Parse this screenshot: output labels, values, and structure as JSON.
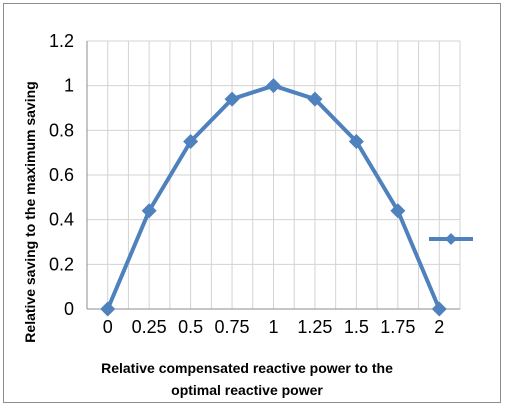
{
  "chart_data": {
    "type": "line",
    "x": [
      0,
      0.25,
      0.5,
      0.75,
      1,
      1.25,
      1.5,
      1.75,
      2
    ],
    "series": [
      {
        "values": [
          0,
          0.44,
          0.75,
          0.94,
          1.0,
          0.94,
          0.75,
          0.44,
          0
        ]
      }
    ],
    "x_tick_labels": [
      "0",
      "0.25",
      "0.5",
      "0.75",
      "1",
      "1.25",
      "1.5",
      "1.75",
      "2"
    ],
    "y_tick_labels": [
      "0",
      "0.2",
      "0.4",
      "0.6",
      "0.8",
      "1",
      "1.2"
    ],
    "y_ticks": [
      0,
      0.2,
      0.4,
      0.6,
      0.8,
      1,
      1.2
    ],
    "ylim": [
      0,
      1.2
    ],
    "xlabel_line1": "Relative compensated reactive power to the",
    "xlabel_line2": "optimal reactive power",
    "ylabel": "Relative saving to the maximum saving",
    "grid": true,
    "legend_position": "right",
    "series_color": "#4f81bd",
    "marker": "diamond"
  }
}
